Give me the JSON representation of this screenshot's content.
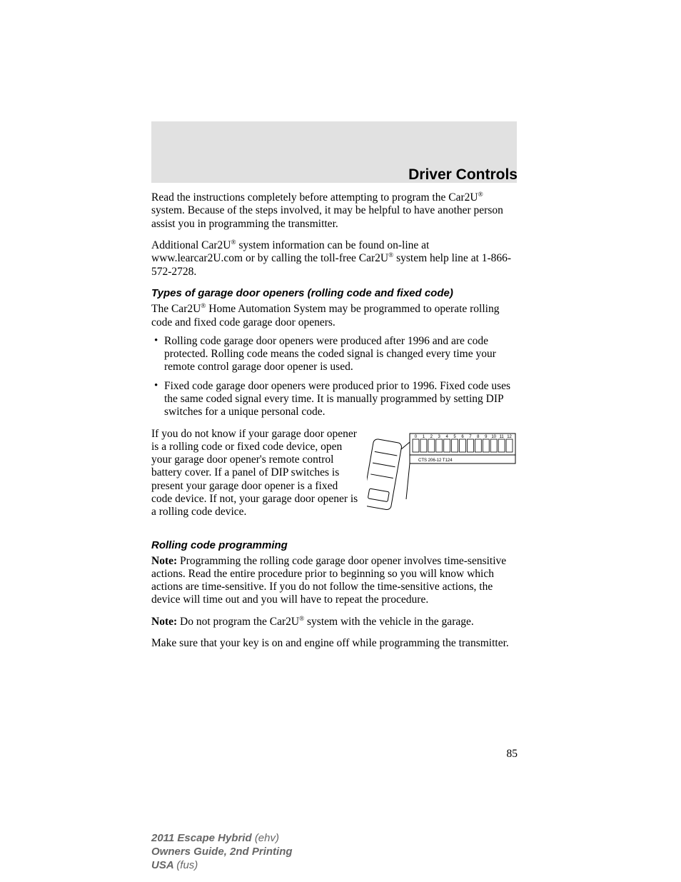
{
  "header": {
    "section_title": "Driver Controls",
    "band_color": "#e1e1e1"
  },
  "body": {
    "intro_para1_a": "Read the instructions completely before attempting to program the Car2U",
    "intro_para1_b": " system. Because of the steps involved, it may be helpful to have another person assist you in programming the transmitter.",
    "intro_para2_a": "Additional Car2U",
    "intro_para2_b": " system information can be found on-line at www.learcar2U.com or by calling the toll-free Car2U",
    "intro_para2_c": " system help line at 1-866-572-2728.",
    "subhead1": "Types of garage door openers (rolling code and fixed code)",
    "para3_a": "The Car2U",
    "para3_b": " Home Automation System may be programmed to operate rolling code and fixed code garage door openers.",
    "bullet1": "Rolling code garage door openers were produced after 1996 and are code protected. Rolling code means the coded signal is changed every time your remote control garage door opener is used.",
    "bullet2": "Fixed code garage door openers were produced prior to 1996. Fixed code uses the same coded signal every time. It is manually programmed by setting DIP switches for a unique personal code.",
    "wrap_para": "If you do not know if your garage door opener is a rolling code or fixed code device, open your garage door opener's remote control battery cover. If a panel of DIP switches is present your garage door opener is a fixed code device. If not, your garage door opener is a rolling code device.",
    "subhead2": "Rolling code programming",
    "note1_label": "Note:",
    "note1_text": " Programming the rolling code garage door opener involves time-sensitive actions. Read the entire procedure prior to beginning so you will know which actions are time-sensitive. If you do not follow the time-sensitive actions, the device will time out and you will have to repeat the procedure.",
    "note2_label": "Note:",
    "note2_text_a": " Do not program the Car2U",
    "note2_text_b": " system with the vehicle in the garage.",
    "para_last": "Make sure that your key is on and engine off while programming the transmitter."
  },
  "diagram": {
    "dip_labels": [
      "0",
      "1",
      "2",
      "3",
      "4",
      "5",
      "6",
      "7",
      "8",
      "9",
      "10",
      "11",
      "12"
    ],
    "pcb_label": "CTS  206-12  T124",
    "stroke": "#000000",
    "fill": "#ffffff"
  },
  "page_number": "85",
  "footer": {
    "line1_bold": "2011 Escape Hybrid ",
    "line1_italic": "(ehv)",
    "line2": "Owners Guide, 2nd Printing",
    "line3_bold": "USA ",
    "line3_italic": "(fus)",
    "color": "#666666"
  },
  "registered": "®"
}
